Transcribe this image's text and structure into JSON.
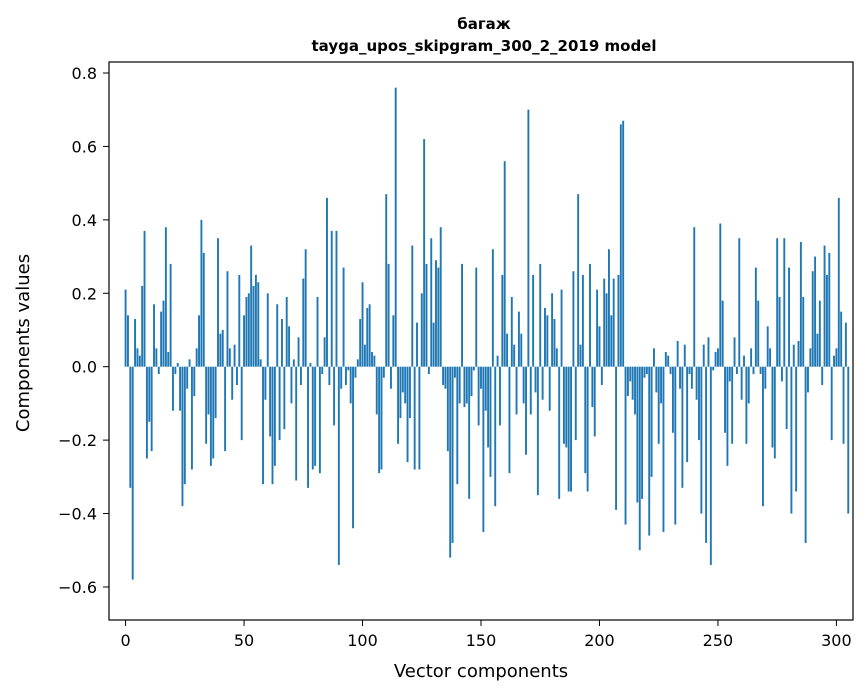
{
  "chart_data": {
    "type": "bar",
    "title": "багаж",
    "subtitle": "tayga_upos_skipgram_300_2_2019 model",
    "xlabel": "Vector components",
    "ylabel": "Components values",
    "xlim": [
      -7,
      307
    ],
    "ylim": [
      -0.69,
      0.83
    ],
    "xticks": [
      0,
      50,
      100,
      150,
      200,
      250,
      300
    ],
    "yticks": [
      -0.6,
      -0.4,
      -0.2,
      0.0,
      0.2,
      0.4,
      0.6,
      0.8
    ],
    "ytick_labels": [
      "−0.6",
      "−0.4",
      "−0.2",
      "0.0",
      "0.2",
      "0.4",
      "0.6",
      "0.8"
    ],
    "grid": false,
    "bar_color": "#1f77b4",
    "values": [
      0.21,
      0.14,
      -0.33,
      -0.58,
      0.13,
      0.05,
      0.03,
      0.22,
      0.37,
      -0.25,
      -0.15,
      -0.23,
      0.17,
      0.05,
      -0.02,
      0.15,
      0.18,
      0.38,
      0.04,
      0.28,
      -0.12,
      -0.02,
      0.01,
      -0.12,
      -0.38,
      -0.32,
      -0.06,
      0.02,
      -0.28,
      -0.08,
      0.05,
      0.14,
      0.4,
      0.31,
      -0.21,
      -0.13,
      -0.27,
      -0.25,
      -0.14,
      0.35,
      0.09,
      0.1,
      -0.23,
      0.26,
      0.05,
      -0.09,
      0.06,
      -0.05,
      0.25,
      -0.2,
      0.14,
      0.19,
      0.2,
      0.33,
      0.22,
      0.25,
      0.23,
      0.02,
      -0.32,
      -0.09,
      0.2,
      -0.19,
      -0.32,
      -0.27,
      0.17,
      -0.2,
      0.13,
      -0.17,
      0.19,
      0.11,
      -0.1,
      0.02,
      -0.31,
      0.08,
      -0.05,
      0.24,
      0.32,
      -0.33,
      0.01,
      -0.28,
      -0.27,
      0.19,
      -0.29,
      -0.02,
      0.08,
      0.46,
      -0.05,
      0.37,
      -0.16,
      0.37,
      -0.54,
      -0.06,
      0.27,
      -0.05,
      -0.01,
      -0.1,
      -0.44,
      -0.03,
      0.02,
      0.13,
      0.23,
      0.06,
      0.16,
      0.17,
      0.04,
      0.03,
      -0.13,
      -0.29,
      -0.28,
      -0.03,
      0.47,
      0.28,
      -0.06,
      0.14,
      0.76,
      -0.21,
      -0.14,
      -0.07,
      -0.1,
      -0.26,
      -0.14,
      0.33,
      -0.28,
      0.12,
      -0.28,
      0.2,
      0.62,
      0.28,
      -0.02,
      0.35,
      0.12,
      0.29,
      0.27,
      0.38,
      -0.05,
      -0.06,
      -0.23,
      -0.52,
      -0.48,
      -0.03,
      -0.32,
      -0.1,
      0.28,
      -0.11,
      -0.1,
      -0.36,
      -0.08,
      -0.01,
      0.27,
      -0.16,
      -0.06,
      -0.45,
      -0.12,
      -0.22,
      -0.3,
      0.32,
      -0.38,
      0.03,
      -0.16,
      0.25,
      0.56,
      0.09,
      -0.29,
      0.19,
      0.06,
      -0.13,
      0.15,
      0.09,
      -0.1,
      -0.24,
      0.7,
      -0.13,
      0.25,
      -0.07,
      -0.35,
      0.28,
      -0.09,
      0.16,
      0.14,
      -0.12,
      0.2,
      0.13,
      0.05,
      -0.36,
      0.21,
      -0.21,
      -0.22,
      -0.34,
      -0.34,
      0.26,
      -0.2,
      0.47,
      0.06,
      0.25,
      -0.29,
      -0.34,
      0.28,
      -0.11,
      -0.19,
      0.21,
      0.11,
      -0.05,
      0.24,
      0.2,
      0.32,
      0.14,
      0.24,
      -0.39,
      0.25,
      0.66,
      0.67,
      -0.43,
      -0.08,
      -0.04,
      -0.09,
      -0.13,
      -0.37,
      -0.5,
      -0.36,
      -0.03,
      -0.02,
      -0.46,
      -0.3,
      0.05,
      -0.07,
      -0.21,
      -0.1,
      -0.45,
      0.04,
      0.03,
      -0.02,
      -0.18,
      -0.43,
      0.07,
      -0.06,
      -0.33,
      0.06,
      -0.26,
      -0.02,
      -0.06,
      0.38,
      -0.09,
      -0.2,
      -0.4,
      0.06,
      -0.48,
      0.08,
      -0.54,
      -0.01,
      0.04,
      0.05,
      0.39,
      0.18,
      -0.18,
      -0.27,
      -0.04,
      -0.21,
      0.08,
      -0.02,
      0.35,
      -0.09,
      0.03,
      -0.21,
      -0.1,
      0.05,
      -0.02,
      0.27,
      0.18,
      -0.02,
      -0.38,
      -0.06,
      0.11,
      0.05,
      -0.22,
      -0.25,
      0.35,
      0.19,
      -0.04,
      0.35,
      -0.17,
      0.27,
      -0.4,
      0.06,
      -0.34,
      0.07,
      0.34,
      0.19,
      -0.48,
      -0.07,
      0.05,
      0.26,
      0.3,
      0.09,
      0.18,
      -0.05,
      0.33,
      0.25,
      0.31,
      -0.2,
      0.03,
      0.05,
      0.46,
      0.15,
      -0.21,
      0.12,
      -0.4
    ]
  }
}
